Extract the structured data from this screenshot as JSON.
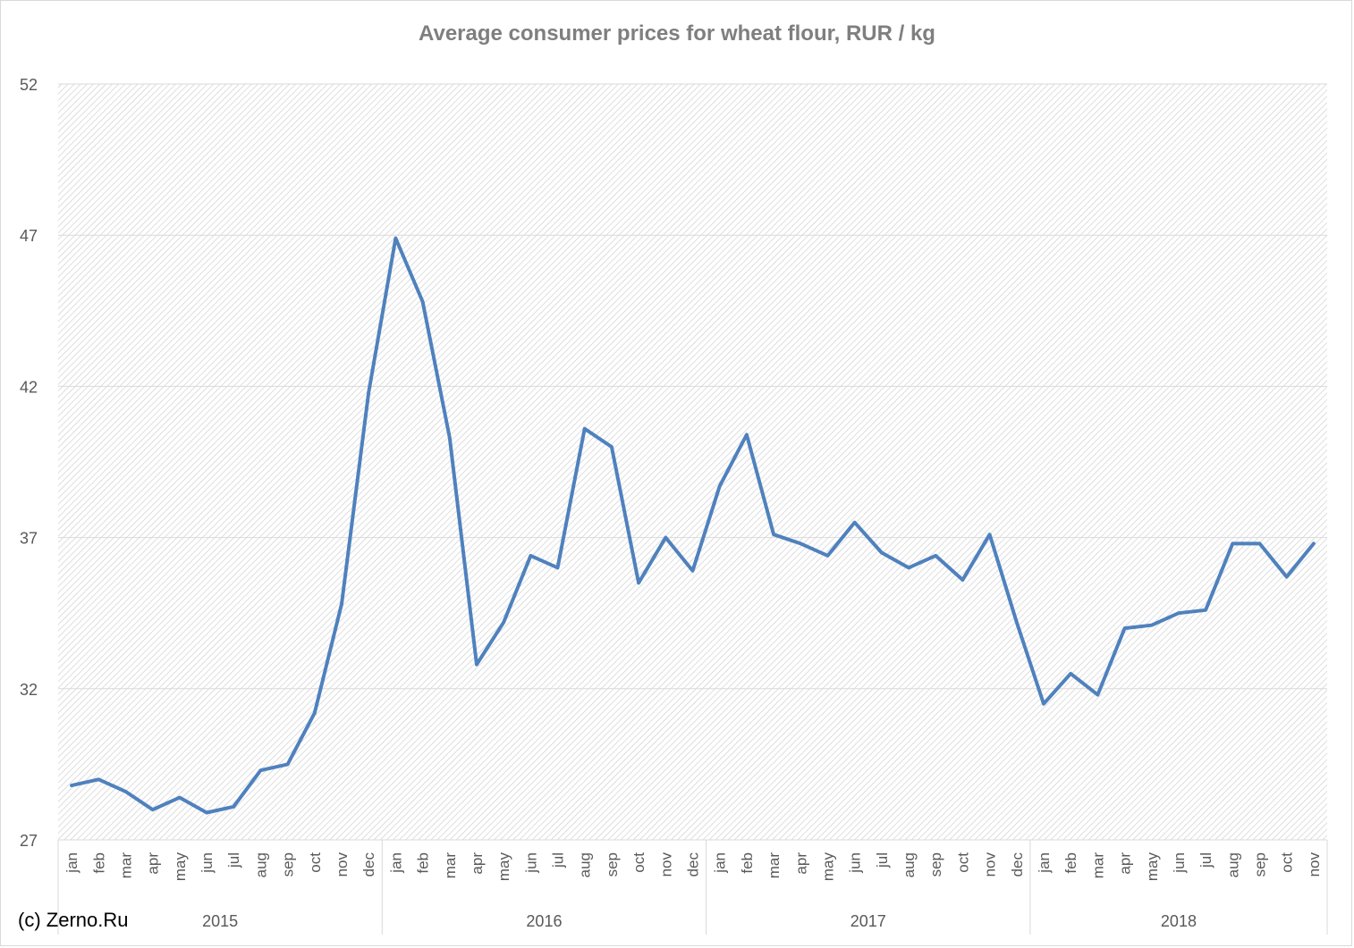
{
  "chart_data": {
    "type": "line",
    "title": "Average consumer prices for wheat flour, RUR / kg",
    "xlabel": "",
    "ylabel": "",
    "ylim": [
      27,
      52
    ],
    "yticks": [
      27,
      32,
      37,
      42,
      47,
      52
    ],
    "grid": true,
    "legend": "none",
    "groups": [
      {
        "label": "2015",
        "months": [
          "jan",
          "feb",
          "mar",
          "apr",
          "may",
          "jun",
          "jul",
          "aug",
          "sep",
          "oct",
          "nov",
          "dec"
        ]
      },
      {
        "label": "2016",
        "months": [
          "jan",
          "feb",
          "mar",
          "apr",
          "may",
          "jun",
          "jul",
          "aug",
          "sep",
          "oct",
          "nov",
          "dec"
        ]
      },
      {
        "label": "2017",
        "months": [
          "jan",
          "feb",
          "mar",
          "apr",
          "may",
          "jun",
          "jul",
          "aug",
          "sep",
          "oct",
          "nov",
          "dec"
        ]
      },
      {
        "label": "2018",
        "months": [
          "jan",
          "feb",
          "mar",
          "apr",
          "may",
          "jun",
          "jul",
          "aug",
          "sep",
          "oct",
          "nov"
        ]
      }
    ],
    "series": [
      {
        "color": "#4f81bd",
        "values": [
          28.8,
          29.0,
          28.6,
          28.0,
          28.4,
          27.9,
          28.1,
          29.3,
          29.5,
          31.2,
          34.8,
          41.8,
          46.9,
          44.8,
          40.3,
          32.8,
          34.2,
          36.4,
          36.0,
          40.6,
          40.0,
          35.5,
          37.0,
          35.9,
          38.7,
          40.4,
          37.1,
          36.8,
          36.4,
          37.5,
          36.5,
          36.0,
          36.4,
          35.6,
          37.1,
          34.2,
          31.5,
          32.5,
          31.8,
          34.0,
          34.1,
          34.5,
          34.6,
          36.8,
          36.8,
          35.7,
          36.8
        ]
      }
    ]
  },
  "watermark": "(c) Zerno.Ru",
  "colors": {
    "grid": "#d9d9d9",
    "axis": "#d9d9d9",
    "text": "#595959",
    "title": "#7f7f7f",
    "hatch": "#d0d0d0"
  }
}
